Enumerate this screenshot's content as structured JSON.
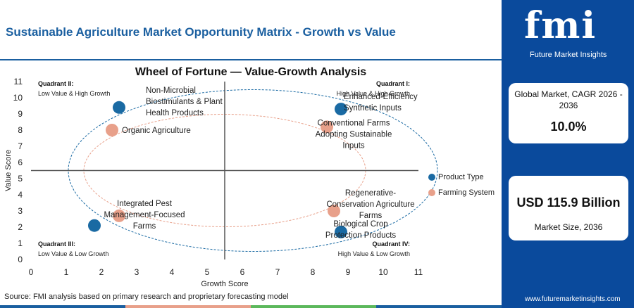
{
  "header": {
    "title": "Sustainable Agriculture Market Opportunity Matrix - Growth vs Value"
  },
  "sidebar": {
    "logo": "fmi",
    "logo_tagline": "Future Market Insights",
    "cagr_label": "Global Market, CAGR 2026 - 2036",
    "cagr_value": "10.0%",
    "size_value": "USD 115.9 Billion",
    "size_label": "Market Size, 2036",
    "url": "www.futuremarketinsights.com"
  },
  "source": "Source: FMI analysis based on primary research and proprietary forecasting model",
  "colors": {
    "brand_blue": "#0a4a9c",
    "product_type": "#1a6aa3",
    "farming_system": "#e8a08a",
    "strip": [
      "#1a5fa0",
      "#e8a08a",
      "#5cb85c",
      "#1a5fa0"
    ]
  },
  "chart_data": {
    "type": "scatter",
    "title": "Wheel of Fortune — Value-Growth Analysis",
    "xlabel": "Growth Score",
    "ylabel": "Value Score",
    "xlim": [
      0,
      11
    ],
    "ylim": [
      0,
      11
    ],
    "xticks": [
      0,
      1,
      2,
      3,
      4,
      5,
      6,
      7,
      8,
      9,
      10,
      11
    ],
    "yticks": [
      0,
      1,
      2,
      3,
      4,
      5,
      6,
      7,
      8,
      9,
      10,
      11
    ],
    "divider": {
      "x": 5.5,
      "y": 5.5
    },
    "quadrants": [
      {
        "id": "q2",
        "title": "Quadrant II:",
        "subtitle": "Low Value & High Growth",
        "position": "top-left"
      },
      {
        "id": "q1",
        "title": "Quadrant I:",
        "subtitle": "High Value & High Growth",
        "position": "top-right"
      },
      {
        "id": "q3",
        "title": "Quadrant III:",
        "subtitle": "Low Value & Low Growth",
        "position": "bottom-left"
      },
      {
        "id": "q4",
        "title": "Quadrant IV:",
        "subtitle": "High Value & Low Growth",
        "position": "bottom-right"
      }
    ],
    "series": [
      {
        "name": "Product Type",
        "color": "#1a6aa3",
        "points": [
          {
            "x": 2.5,
            "y": 9.4,
            "label": [
              "Non-Microbial",
              "Biostimulants & Plant",
              "Health Products"
            ]
          },
          {
            "x": 8.8,
            "y": 9.3,
            "label": [
              "Enhanced-Efficiency",
              "Synthetic Inputs"
            ]
          },
          {
            "x": 1.8,
            "y": 2.1,
            "label": []
          },
          {
            "x": 8.8,
            "y": 1.7,
            "label": [
              "Biological Crop",
              "Protection Products"
            ]
          }
        ]
      },
      {
        "name": "Farming System",
        "color": "#e8a08a",
        "points": [
          {
            "x": 2.3,
            "y": 8.0,
            "label": [
              "Organic Agriculture"
            ]
          },
          {
            "x": 8.4,
            "y": 8.2,
            "label": [
              "Conventional Farms",
              "Adopting Sustainable",
              "Inputs"
            ]
          },
          {
            "x": 2.5,
            "y": 2.7,
            "label": [
              "Integrated Pest",
              "Management-Focused",
              "Farms"
            ]
          },
          {
            "x": 8.6,
            "y": 3.0,
            "label": [
              "Regenerative-",
              "Conservation Agriculture",
              "Farms"
            ]
          }
        ]
      }
    ],
    "legend_position": "right"
  }
}
